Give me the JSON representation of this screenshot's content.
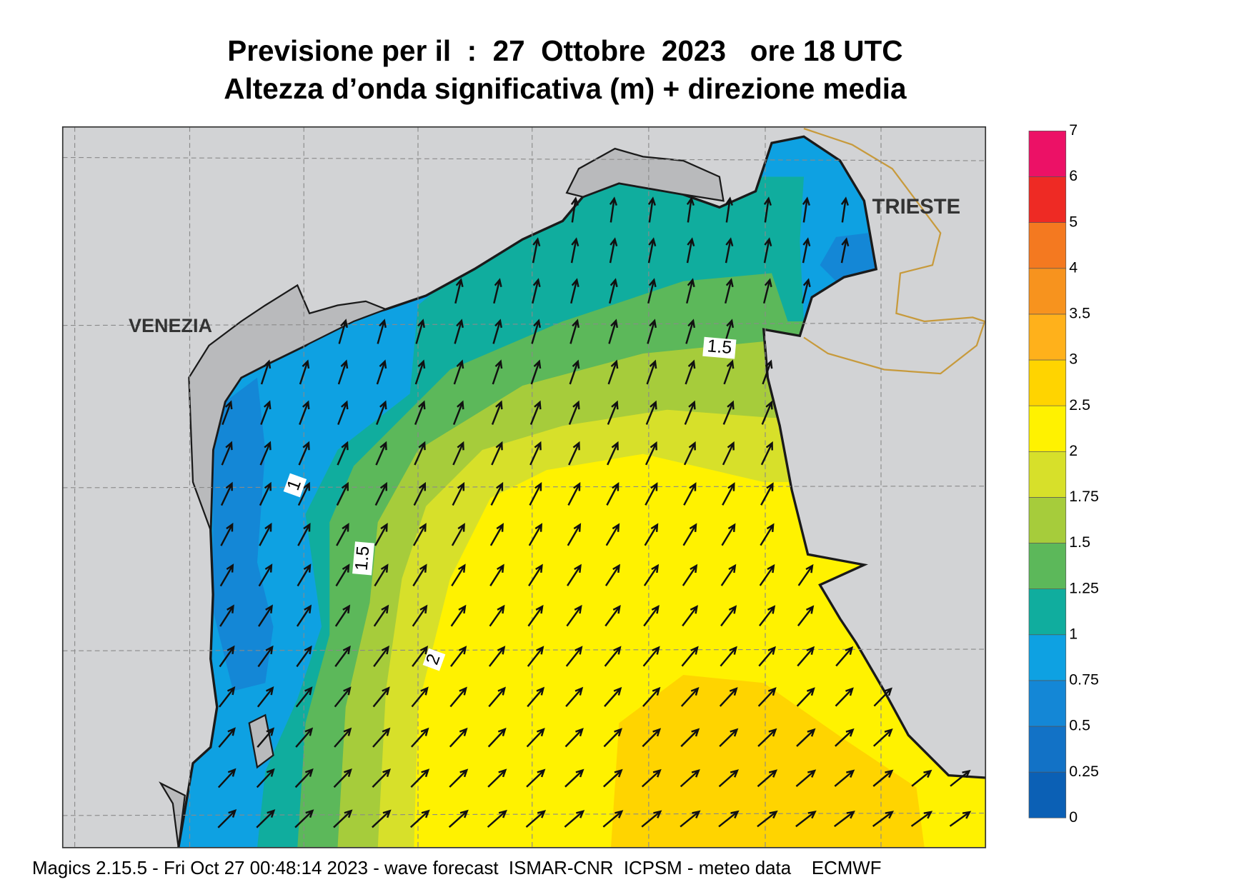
{
  "header": {
    "title": "Previsione per il  :  27  Ottobre  2023   ore 18 UTC",
    "subtitle": "Altezza d’onda significativa (m) + direzione media"
  },
  "places": [
    "VENEZIA",
    "TRIESTE"
  ],
  "contour_labels": [
    1.5,
    1,
    1.5,
    2
  ],
  "legend": {
    "levels": [
      0,
      0.25,
      0.5,
      0.75,
      1,
      1.25,
      1.5,
      1.75,
      2,
      2.5,
      3,
      3.5,
      4,
      5,
      6,
      7
    ],
    "colors": [
      "#0b60b5",
      "#1272c6",
      "#1487d6",
      "#0ea1e2",
      "#10ad9e",
      "#5cb85a",
      "#a6cc3b",
      "#d7e02a",
      "#fff200",
      "#ffd400",
      "#ffb11b",
      "#f7931e",
      "#f47920",
      "#ee2a24",
      "#ec1166"
    ]
  },
  "footer": "Magics 2.15.5 - Fri Oct 27 00:48:14 2023 - wave forecast  ISMAR-CNR  ICPSM - meteo data    ECMWF"
}
